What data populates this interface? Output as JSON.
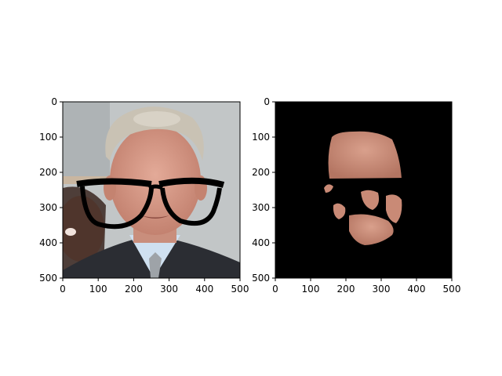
{
  "figure": {
    "background": "#ffffff"
  },
  "chart_data": [
    {
      "type": "image",
      "xlim": [
        0,
        500
      ],
      "ylim": [
        500,
        0
      ],
      "x_ticks": [
        0,
        100,
        200,
        300,
        400,
        500
      ],
      "y_ticks": [
        0,
        100,
        200,
        300,
        400,
        500
      ],
      "grid": false,
      "content": "photo of an older man's face with a drawn black eyeglasses overlay, second face partially visible at left",
      "colors": {
        "background": "#bfc3c4",
        "suit": "#2b2d33",
        "shirt": "#cfe0f0",
        "glasses": "#000000",
        "skin": "#d79a88"
      }
    },
    {
      "type": "image",
      "xlim": [
        0,
        500
      ],
      "ylim": [
        500,
        0
      ],
      "x_ticks": [
        0,
        100,
        200,
        300,
        400,
        500
      ],
      "y_ticks": [
        0,
        100,
        200,
        300,
        400,
        500
      ],
      "grid": false,
      "content": "skin segmentation mask of the face on black background with glasses region removed",
      "colors": {
        "background": "#000000",
        "skin": "#c98a76"
      }
    }
  ]
}
